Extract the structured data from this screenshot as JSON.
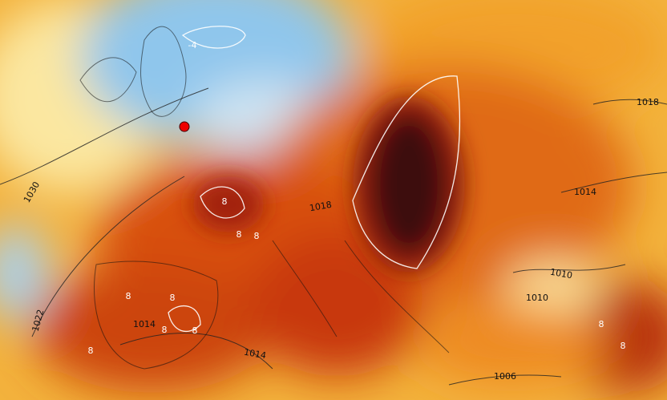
{
  "map": {
    "isobar_labels": [
      1030,
      1022,
      1014,
      1014,
      1018,
      1018,
      1014,
      1010,
      1010,
      1006
    ],
    "isotherm_labels": [
      -4,
      8,
      8,
      8,
      8,
      8,
      8,
      8,
      8,
      8,
      8
    ]
  }
}
